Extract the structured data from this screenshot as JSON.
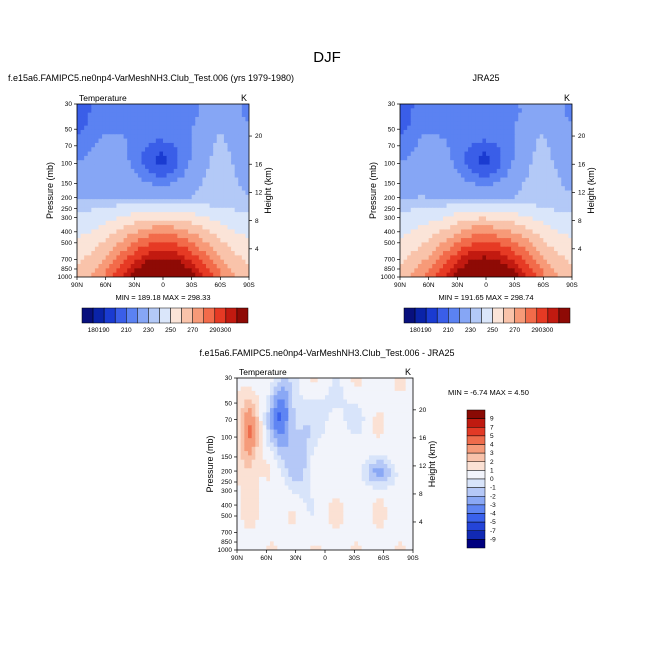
{
  "figure_title": "DJF",
  "colors": {
    "temperature_scale": [
      "#08107d",
      "#0a23a8",
      "#1a3bd1",
      "#3a5ee8",
      "#5b82f2",
      "#86a6f5",
      "#b3c9f7",
      "#dae6fa",
      "#fbe4d8",
      "#f9c3aa",
      "#f79a78",
      "#f26b4a",
      "#e63a24",
      "#c21a10",
      "#8e0a05"
    ],
    "difference_scale": [
      "#00007f",
      "#1129b4",
      "#2444d8",
      "#3a61ec",
      "#5f85f3",
      "#8aa8f5",
      "#b5c8f7",
      "#d8e4fa",
      "#f2f4fb",
      "#fbe1d4",
      "#f8c2aa",
      "#f59b7a",
      "#ee6c4c",
      "#e23a26",
      "#bf1a10",
      "#8a0a04"
    ]
  },
  "chart_data": [
    {
      "type": "heatmap",
      "panel": "model",
      "title": "f.e15a6.FAMIPC5.ne0np4-VarMeshNH3.Club_Test.006 (yrs 1979-1980)",
      "variable_label": "Temperature",
      "units_label": "K",
      "xlabel": "",
      "ylabel": "Pressure (mb)",
      "right_ylabel": "Height (km)",
      "x_ticks": [
        "90N",
        "60N",
        "30N",
        "0",
        "30S",
        "60S",
        "90S"
      ],
      "y_ticks": [
        "30",
        "50",
        "70",
        "100",
        "150",
        "200",
        "250",
        "300",
        "400",
        "500",
        "700",
        "850",
        "1000"
      ],
      "right_ticks": [
        "20",
        "16",
        "12",
        "8",
        "4"
      ],
      "min_max": "MIN = 189.18  MAX = 298.33",
      "levels": [
        180,
        190,
        200,
        210,
        220,
        230,
        240,
        250,
        260,
        270,
        280,
        290,
        300
      ],
      "legend_labels": [
        "180",
        "190",
        "210",
        "230",
        "250",
        "270",
        "290",
        "300"
      ]
    },
    {
      "type": "heatmap",
      "panel": "observations",
      "title": "JRA25",
      "variable_label": "",
      "units_label": "K",
      "xlabel": "",
      "ylabel": "Pressure (mb)",
      "right_ylabel": "Height (km)",
      "x_ticks": [
        "90N",
        "60N",
        "30N",
        "0",
        "30S",
        "60S",
        "90S"
      ],
      "y_ticks": [
        "30",
        "50",
        "70",
        "100",
        "150",
        "200",
        "250",
        "300",
        "400",
        "500",
        "700",
        "850",
        "1000"
      ],
      "right_ticks": [
        "20",
        "16",
        "12",
        "8",
        "4"
      ],
      "min_max": "MIN = 191.65  MAX = 298.74",
      "levels": [
        180,
        190,
        200,
        210,
        220,
        230,
        240,
        250,
        260,
        270,
        280,
        290,
        300
      ],
      "legend_labels": [
        "180",
        "190",
        "210",
        "230",
        "250",
        "270",
        "290",
        "300"
      ]
    },
    {
      "type": "heatmap",
      "panel": "difference",
      "title": "f.e15a6.FAMIPC5.ne0np4-VarMeshNH3.Club_Test.006 - JRA25",
      "variable_label": "Temperature",
      "units_label": "K",
      "xlabel": "",
      "ylabel": "Pressure (mb)",
      "right_ylabel": "Height (km)",
      "x_ticks": [
        "90N",
        "60N",
        "30N",
        "0",
        "30S",
        "60S",
        "90S"
      ],
      "y_ticks": [
        "30",
        "50",
        "70",
        "100",
        "150",
        "200",
        "250",
        "300",
        "400",
        "500",
        "700",
        "850",
        "1000"
      ],
      "right_ticks": [
        "20",
        "16",
        "12",
        "8",
        "4"
      ],
      "min_max": "MIN =  -6.74  MAX =   4.50",
      "levels": [
        -9,
        -7,
        -5,
        -4,
        -3,
        -2,
        -1,
        0,
        1,
        2,
        3,
        4,
        5,
        7,
        9
      ],
      "legend_labels": [
        "9",
        "7",
        "5",
        "4",
        "3",
        "2",
        "1",
        "0",
        "-1",
        "-2",
        "-3",
        "-4",
        "-5",
        "-7",
        "-9"
      ]
    }
  ]
}
